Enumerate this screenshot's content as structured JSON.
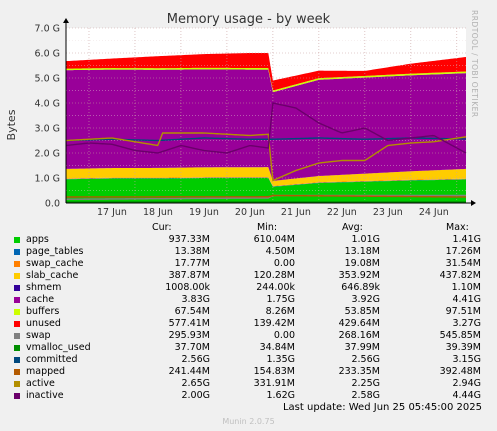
{
  "title": "Memory usage - by week",
  "side_label": "RRDTOOL / TOBI OETIKER",
  "legend_headers": {
    "cur": "Cur:",
    "min": "Min:",
    "avg": "Avg:",
    "max": "Max:"
  },
  "legend": [
    {
      "name": "apps",
      "color": "#00CC00",
      "cur": "937.33M",
      "min": "610.04M",
      "avg": "1.01G",
      "max": "1.41G"
    },
    {
      "name": "page_tables",
      "color": "#0066B3",
      "cur": "13.38M",
      "min": "4.50M",
      "avg": "13.18M",
      "max": "17.26M"
    },
    {
      "name": "swap_cache",
      "color": "#FF8000",
      "cur": "17.77M",
      "min": "0.00",
      "avg": "19.08M",
      "max": "31.54M"
    },
    {
      "name": "slab_cache",
      "color": "#FFCC00",
      "cur": "387.87M",
      "min": "120.28M",
      "avg": "353.92M",
      "max": "437.82M"
    },
    {
      "name": "shmem",
      "color": "#330099",
      "cur": "1008.00k",
      "min": "244.00k",
      "avg": "646.89k",
      "max": "1.10M"
    },
    {
      "name": "cache",
      "color": "#990099",
      "cur": "3.83G",
      "min": "1.75G",
      "avg": "3.92G",
      "max": "4.41G"
    },
    {
      "name": "buffers",
      "color": "#CCFF00",
      "cur": "67.54M",
      "min": "8.26M",
      "avg": "53.85M",
      "max": "97.51M"
    },
    {
      "name": "unused",
      "color": "#FF0000",
      "cur": "577.41M",
      "min": "139.42M",
      "avg": "429.64M",
      "max": "3.27G"
    },
    {
      "name": "swap",
      "color": "#808080",
      "cur": "295.93M",
      "min": "0.00",
      "avg": "268.16M",
      "max": "545.85M"
    },
    {
      "name": "vmalloc_used",
      "color": "#008F00",
      "cur": "37.70M",
      "min": "34.84M",
      "avg": "37.99M",
      "max": "39.39M"
    },
    {
      "name": "committed",
      "color": "#00487D",
      "cur": "2.56G",
      "min": "1.35G",
      "avg": "2.56G",
      "max": "3.15G"
    },
    {
      "name": "mapped",
      "color": "#B35A00",
      "cur": "241.44M",
      "min": "154.83M",
      "avg": "233.35M",
      "max": "392.48M"
    },
    {
      "name": "active",
      "color": "#B38F00",
      "cur": "2.65G",
      "min": "331.91M",
      "avg": "2.25G",
      "max": "2.94G"
    },
    {
      "name": "inactive",
      "color": "#6B006B",
      "cur": "2.00G",
      "min": "1.62G",
      "avg": "2.58G",
      "max": "4.44G"
    }
  ],
  "last_update": "Last update: Wed Jun 25 05:45:00 2025",
  "footer": "Munin 2.0.75",
  "chart_data": {
    "type": "area",
    "title": "Memory usage - by week",
    "ylabel": "Bytes",
    "ylim": [
      0,
      7.0
    ],
    "y_unit": "G",
    "y_ticks": [
      "0.0",
      "1.0 G",
      "2.0 G",
      "3.0 G",
      "4.0 G",
      "5.0 G",
      "6.0 G",
      "7.0 G"
    ],
    "x_labels": [
      "17 Jun",
      "18 Jun",
      "19 Jun",
      "20 Jun",
      "21 Jun",
      "22 Jun",
      "23 Jun",
      "24 Jun"
    ],
    "x_days": [
      16.5,
      25.2
    ],
    "grid": true,
    "stacked_series": [
      {
        "name": "apps",
        "color": "#00CC00",
        "x": [
          16.5,
          17.5,
          18.5,
          19.5,
          20.5,
          20.9,
          21.0,
          22.0,
          23.0,
          24.0,
          25.2
        ],
        "values": [
          0.95,
          0.98,
          0.98,
          1.0,
          1.0,
          1.0,
          0.65,
          0.8,
          0.85,
          0.9,
          0.94
        ]
      },
      {
        "name": "page_tables",
        "color": "#0066B3",
        "x": [
          16.5,
          25.2
        ],
        "values": [
          0.013,
          0.013
        ]
      },
      {
        "name": "swap_cache",
        "color": "#FF8000",
        "x": [
          16.5,
          25.2
        ],
        "values": [
          0.02,
          0.02
        ]
      },
      {
        "name": "slab_cache",
        "color": "#FFCC00",
        "x": [
          16.5,
          20.9,
          21.0,
          25.2
        ],
        "values": [
          0.38,
          0.4,
          0.2,
          0.39
        ]
      },
      {
        "name": "shmem",
        "color": "#330099",
        "x": [
          16.5,
          25.2
        ],
        "values": [
          0.001,
          0.001
        ]
      },
      {
        "name": "cache",
        "color": "#990099",
        "x": [
          16.5,
          20.9,
          21.0,
          22.0,
          25.2
        ],
        "values": [
          3.95,
          3.9,
          3.55,
          3.85,
          3.83
        ]
      },
      {
        "name": "buffers",
        "color": "#CCFF00",
        "x": [
          16.5,
          25.2
        ],
        "values": [
          0.06,
          0.067
        ]
      },
      {
        "name": "unused",
        "color": "#FF0000",
        "x": [
          16.5,
          17.5,
          18.5,
          19.5,
          20.5,
          20.9,
          21.0,
          22.0,
          23.0,
          24.0,
          25.2
        ],
        "values": [
          0.3,
          0.38,
          0.48,
          0.55,
          0.6,
          0.6,
          0.4,
          0.3,
          0.2,
          0.4,
          0.58
        ]
      }
    ],
    "unused_gaps": [
      [
        16.5,
        20.9,
        0.48
      ],
      [
        21.0,
        22.6,
        0.15
      ],
      [
        22.6,
        25.2,
        0.35
      ]
    ],
    "line_series": [
      {
        "name": "swap",
        "color": "#808080",
        "x": [
          16.5,
          20.9,
          21.0,
          25.2
        ],
        "values": [
          0.15,
          0.2,
          0.3,
          0.3
        ]
      },
      {
        "name": "vmalloc_used",
        "color": "#008F00",
        "x": [
          16.5,
          25.2
        ],
        "values": [
          0.04,
          0.04
        ]
      },
      {
        "name": "committed",
        "color": "#00487D",
        "x": [
          16.5,
          17.5,
          18.5,
          19.5,
          20.5,
          20.9,
          21.0,
          22.0,
          23.0,
          24.0,
          25.2
        ],
        "values": [
          2.5,
          2.55,
          2.5,
          2.6,
          2.55,
          2.55,
          2.55,
          2.6,
          2.55,
          2.6,
          2.56
        ]
      },
      {
        "name": "mapped",
        "color": "#B35A00",
        "x": [
          16.5,
          20.9,
          21.0,
          25.2
        ],
        "values": [
          0.24,
          0.25,
          0.3,
          0.24
        ]
      },
      {
        "name": "active",
        "color": "#B38F00",
        "x": [
          16.5,
          17.5,
          18.5,
          18.6,
          19.5,
          20.5,
          20.9,
          21.0,
          21.5,
          22.0,
          22.5,
          23.0,
          23.5,
          24.0,
          24.5,
          25.2
        ],
        "values": [
          2.5,
          2.6,
          2.3,
          2.8,
          2.8,
          2.7,
          2.75,
          0.9,
          1.3,
          1.6,
          1.7,
          1.7,
          2.3,
          2.4,
          2.45,
          2.65
        ]
      },
      {
        "name": "inactive",
        "color": "#6B006B",
        "x": [
          16.5,
          17.0,
          17.5,
          18.0,
          18.5,
          19.0,
          19.5,
          20.0,
          20.5,
          20.9,
          21.0,
          21.5,
          22.0,
          22.5,
          23.0,
          23.5,
          24.0,
          24.5,
          25.2
        ],
        "values": [
          2.3,
          2.4,
          2.35,
          2.1,
          2.0,
          2.3,
          2.1,
          2.0,
          2.3,
          2.2,
          4.0,
          3.8,
          3.2,
          2.8,
          3.0,
          2.5,
          2.6,
          2.7,
          2.0
        ]
      }
    ]
  }
}
